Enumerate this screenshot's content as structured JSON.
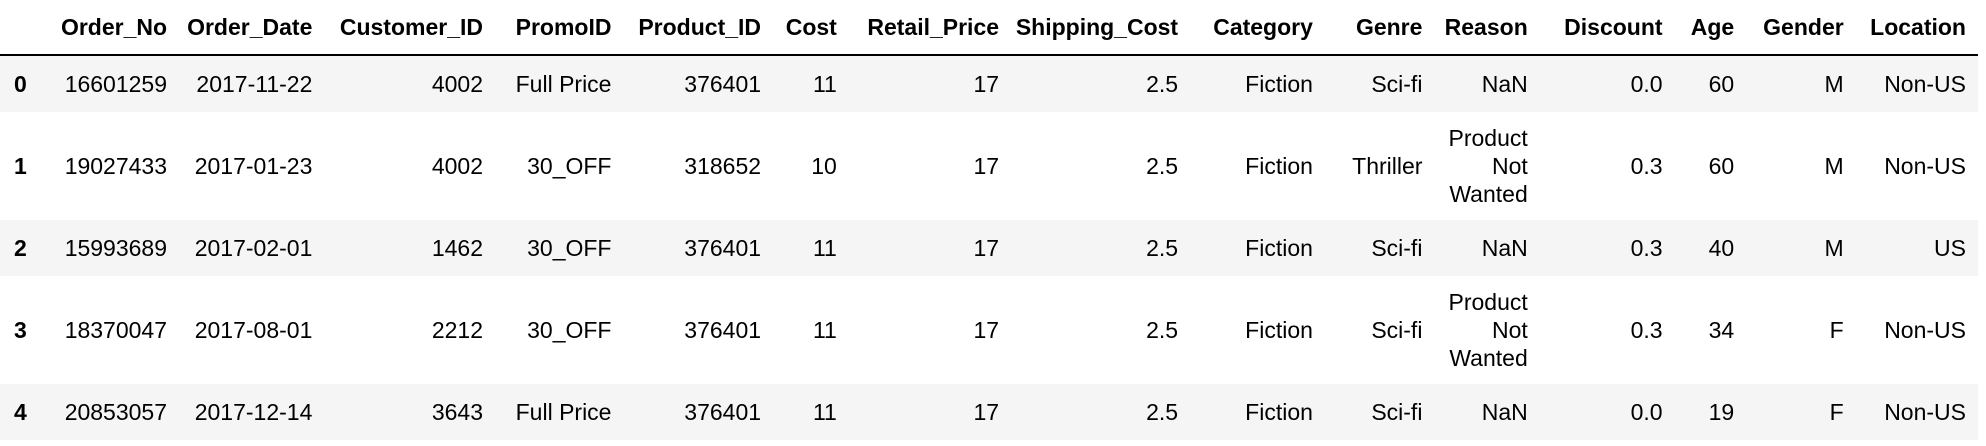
{
  "table": {
    "columns": [
      "",
      "Order_No",
      "Order_Date",
      "Customer_ID",
      "PromoID",
      "Product_ID",
      "Cost",
      "Retail_Price",
      "Shipping_Cost",
      "Category",
      "Genre",
      "Reason",
      "Discount",
      "Age",
      "Gender",
      "Location"
    ],
    "rows": [
      {
        "index": "0",
        "Order_No": "16601259",
        "Order_Date": "2017-11-22",
        "Customer_ID": "4002",
        "PromoID": "Full Price",
        "Product_ID": "376401",
        "Cost": "11",
        "Retail_Price": "17",
        "Shipping_Cost": "2.5",
        "Category": "Fiction",
        "Genre": "Sci-fi",
        "Reason": [
          "NaN"
        ],
        "Discount": "0.0",
        "Age": "60",
        "Gender": "M",
        "Location": "Non-US"
      },
      {
        "index": "1",
        "Order_No": "19027433",
        "Order_Date": "2017-01-23",
        "Customer_ID": "4002",
        "PromoID": "30_OFF",
        "Product_ID": "318652",
        "Cost": "10",
        "Retail_Price": "17",
        "Shipping_Cost": "2.5",
        "Category": "Fiction",
        "Genre": "Thriller",
        "Reason": [
          "Product",
          "Not",
          "Wanted"
        ],
        "Discount": "0.3",
        "Age": "60",
        "Gender": "M",
        "Location": "Non-US"
      },
      {
        "index": "2",
        "Order_No": "15993689",
        "Order_Date": "2017-02-01",
        "Customer_ID": "1462",
        "PromoID": "30_OFF",
        "Product_ID": "376401",
        "Cost": "11",
        "Retail_Price": "17",
        "Shipping_Cost": "2.5",
        "Category": "Fiction",
        "Genre": "Sci-fi",
        "Reason": [
          "NaN"
        ],
        "Discount": "0.3",
        "Age": "40",
        "Gender": "M",
        "Location": "US"
      },
      {
        "index": "3",
        "Order_No": "18370047",
        "Order_Date": "2017-08-01",
        "Customer_ID": "2212",
        "PromoID": "30_OFF",
        "Product_ID": "376401",
        "Cost": "11",
        "Retail_Price": "17",
        "Shipping_Cost": "2.5",
        "Category": "Fiction",
        "Genre": "Sci-fi",
        "Reason": [
          "Product",
          "Not",
          "Wanted"
        ],
        "Discount": "0.3",
        "Age": "34",
        "Gender": "F",
        "Location": "Non-US"
      },
      {
        "index": "4",
        "Order_No": "20853057",
        "Order_Date": "2017-12-14",
        "Customer_ID": "3643",
        "PromoID": "Full Price",
        "Product_ID": "376401",
        "Cost": "11",
        "Retail_Price": "17",
        "Shipping_Cost": "2.5",
        "Category": "Fiction",
        "Genre": "Sci-fi",
        "Reason": [
          "NaN"
        ],
        "Discount": "0.0",
        "Age": "19",
        "Gender": "F",
        "Location": "Non-US"
      }
    ]
  }
}
